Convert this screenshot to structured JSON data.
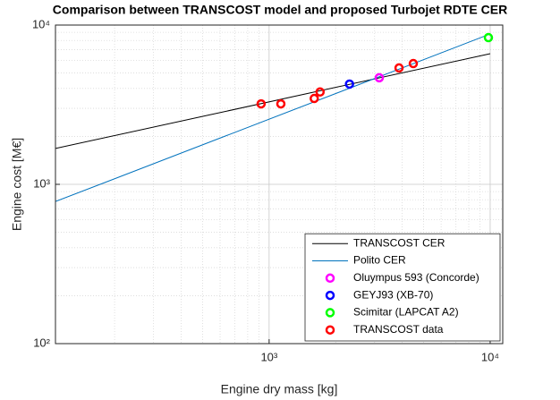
{
  "chart_data": {
    "type": "scatter",
    "title": "Comparison between TRANSCOST model and proposed Turbojet RDTE CER",
    "xlabel": "Engine dry mass [kg]",
    "ylabel": "Engine cost [M€]",
    "xscale": "log",
    "yscale": "log",
    "xlim": [
      108,
      11400
    ],
    "ylim": [
      100,
      10000
    ],
    "xticks": [
      {
        "value": 1000,
        "label": "10³"
      },
      {
        "value": 10000,
        "label": "10⁴"
      }
    ],
    "yticks": [
      {
        "value": 100,
        "label": "10²"
      },
      {
        "value": 1000,
        "label": "10³"
      },
      {
        "value": 10000,
        "label": "10⁴"
      }
    ],
    "grid": true,
    "minor_grid": true,
    "legend": "lower right",
    "series": [
      {
        "name": "TRANSCOST CER",
        "type": "line",
        "color": "#000000",
        "x": [
          108,
          10000
        ],
        "values": [
          1680,
          6610
        ]
      },
      {
        "name": "Polito CER",
        "type": "line",
        "color": "#0072bd",
        "x": [
          108,
          10000
        ],
        "values": [
          780,
          8790
        ]
      },
      {
        "name": "Oluympus 593 (Concorde)",
        "type": "marker",
        "color": "#ff00ff",
        "x": [
          3150
        ],
        "values": [
          4670
        ]
      },
      {
        "name": "GEYJ93 (XB-70)",
        "type": "marker",
        "color": "#0000ff",
        "x": [
          2310
        ],
        "values": [
          4260
        ]
      },
      {
        "name": "Scimitar (LAPCAT A2)",
        "type": "marker",
        "color": "#00ff00",
        "x": [
          9820
        ],
        "values": [
          8340
        ]
      },
      {
        "name": "TRANSCOST data",
        "type": "marker",
        "color": "#ff0000",
        "x": [
          920,
          1130,
          1600,
          1700,
          3870,
          4490
        ],
        "values": [
          3200,
          3200,
          3460,
          3800,
          5380,
          5730
        ]
      }
    ]
  }
}
